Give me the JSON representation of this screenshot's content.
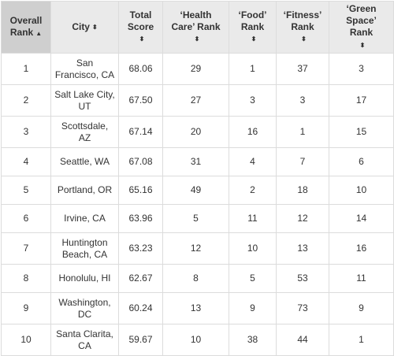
{
  "columns": [
    {
      "l1": "Overall",
      "l2": "Rank",
      "icon": "▲",
      "icon_name": "sort-ascending-icon"
    },
    {
      "l1": "City",
      "l2": "",
      "icon": "⬍",
      "icon_name": "sort-icon"
    },
    {
      "l1": "Total",
      "l2": "Score",
      "icon": "⬍",
      "icon_name": "sort-icon"
    },
    {
      "l1": "‘Health",
      "l2": "Care’ Rank",
      "icon": "⬍",
      "icon_name": "sort-icon"
    },
    {
      "l1": "‘Food’",
      "l2": "Rank",
      "icon": "⬍",
      "icon_name": "sort-icon"
    },
    {
      "l1": "‘Fitness’",
      "l2": "Rank",
      "icon": "⬍",
      "icon_name": "sort-icon"
    },
    {
      "l1": "‘Green",
      "l2": "Space’",
      "l3": "Rank",
      "icon": "⬍",
      "icon_name": "sort-icon"
    }
  ],
  "rows": [
    {
      "rank": "1",
      "city1": "San",
      "city2": "Francisco, CA",
      "score": "68.06",
      "health": "29",
      "food": "1",
      "fitness": "37",
      "green": "3"
    },
    {
      "rank": "2",
      "city1": "Salt Lake City,",
      "city2": "UT",
      "score": "67.50",
      "health": "27",
      "food": "3",
      "fitness": "3",
      "green": "17"
    },
    {
      "rank": "3",
      "city1": "Scottsdale,",
      "city2": "AZ",
      "score": "67.14",
      "health": "20",
      "food": "16",
      "fitness": "1",
      "green": "15"
    },
    {
      "rank": "4",
      "city1": "Seattle, WA",
      "city2": "",
      "score": "67.08",
      "health": "31",
      "food": "4",
      "fitness": "7",
      "green": "6"
    },
    {
      "rank": "5",
      "city1": "Portland, OR",
      "city2": "",
      "score": "65.16",
      "health": "49",
      "food": "2",
      "fitness": "18",
      "green": "10"
    },
    {
      "rank": "6",
      "city1": "Irvine, CA",
      "city2": "",
      "score": "63.96",
      "health": "5",
      "food": "11",
      "fitness": "12",
      "green": "14"
    },
    {
      "rank": "7",
      "city1": "Huntington",
      "city2": "Beach, CA",
      "score": "63.23",
      "health": "12",
      "food": "10",
      "fitness": "13",
      "green": "16"
    },
    {
      "rank": "8",
      "city1": "Honolulu, HI",
      "city2": "",
      "score": "62.67",
      "health": "8",
      "food": "5",
      "fitness": "53",
      "green": "11"
    },
    {
      "rank": "9",
      "city1": "Washington,",
      "city2": "DC",
      "score": "60.24",
      "health": "13",
      "food": "9",
      "fitness": "73",
      "green": "9"
    },
    {
      "rank": "10",
      "city1": "Santa Clarita,",
      "city2": "CA",
      "score": "59.67",
      "health": "10",
      "food": "38",
      "fitness": "44",
      "green": "1"
    }
  ]
}
